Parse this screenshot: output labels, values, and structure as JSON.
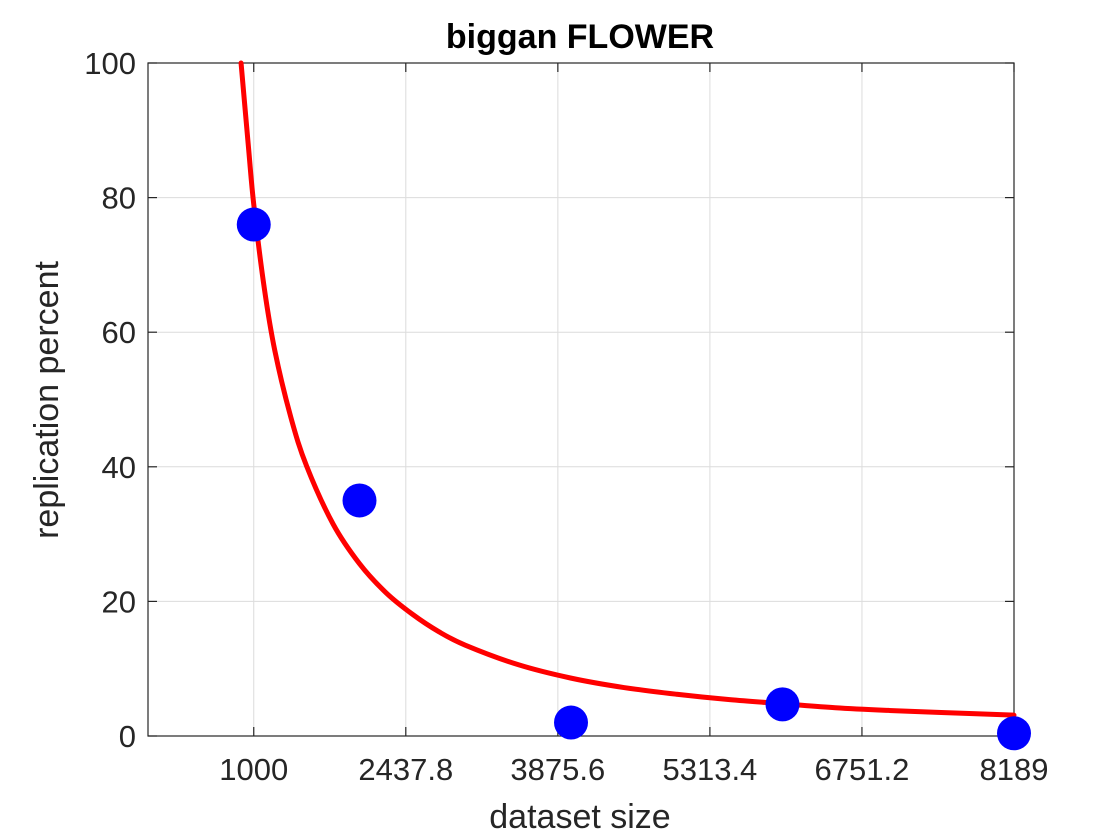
{
  "chart_data": {
    "type": "scatter",
    "title": "biggan FLOWER",
    "xlabel": "dataset size",
    "ylabel": "replication percent",
    "xlim": [
      0,
      8189
    ],
    "ylim": [
      0,
      100
    ],
    "xticks": [
      1000,
      2437.8,
      3875.6,
      5313.4,
      6751.2,
      8189
    ],
    "xtick_labels": [
      "1000",
      "2437.8",
      "3875.6",
      "5313.4",
      "6751.2",
      "8189"
    ],
    "yticks": [
      0,
      20,
      40,
      60,
      80,
      100
    ],
    "ytick_labels": [
      "0",
      "20",
      "40",
      "60",
      "80",
      "100"
    ],
    "grid": true,
    "series": [
      {
        "kind": "points",
        "color": "#0000ff",
        "x": [
          1000,
          2000,
          4000,
          6000,
          8189
        ],
        "y": [
          76,
          35,
          2,
          4.7,
          0.4
        ]
      },
      {
        "kind": "fit-curve",
        "color": "#ff0000",
        "x": [
          880,
          950,
          1000,
          1100,
          1200,
          1350,
          1500,
          1750,
          2000,
          2250,
          2500,
          2750,
          3000,
          3500,
          4000,
          4500,
          5000,
          5500,
          6000,
          6500,
          7000,
          7500,
          8189
        ],
        "y": [
          100.0,
          87.5,
          79.0,
          66.5,
          57.2,
          47.4,
          40.1,
          31.5,
          25.6,
          21.3,
          18.1,
          15.5,
          13.5,
          10.6,
          8.6,
          7.2,
          6.2,
          5.4,
          4.8,
          4.2,
          3.8,
          3.5,
          3.1
        ]
      }
    ]
  }
}
